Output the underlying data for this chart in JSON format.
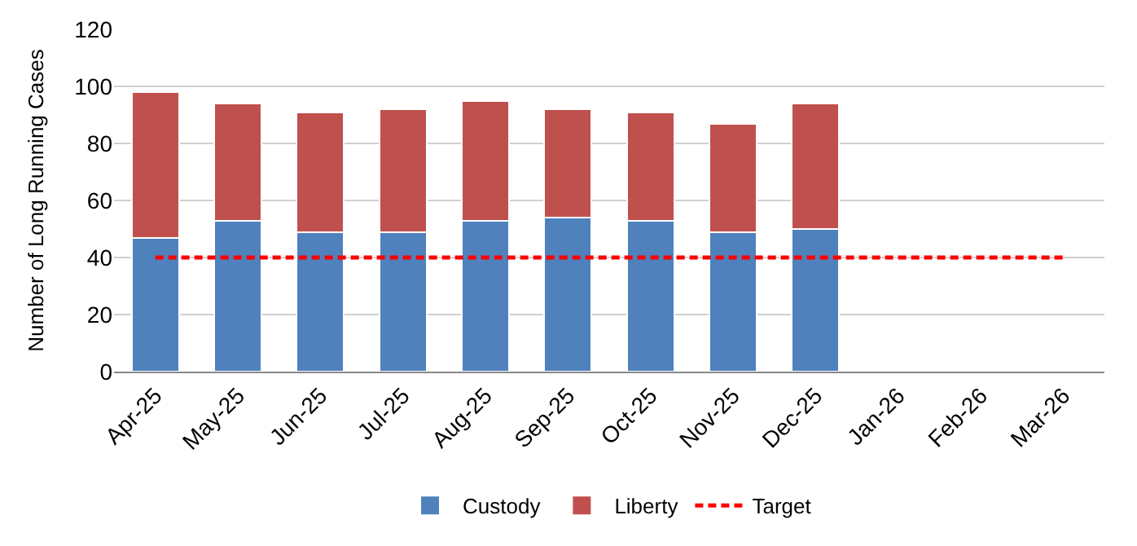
{
  "chart_data": {
    "type": "bar",
    "stacked": true,
    "ylabel": "Number of Long Running Cases",
    "categories": [
      "Apr-25",
      "May-25",
      "Jun-25",
      "Jul-25",
      "Aug-25",
      "Sep-25",
      "Oct-25",
      "Nov-25",
      "Dec-25",
      "Jan-26",
      "Feb-26",
      "Mar-26"
    ],
    "series": [
      {
        "name": "Custody",
        "color": "#4f81bd",
        "values": [
          47,
          53,
          49,
          49,
          53,
          54,
          53,
          49,
          50,
          null,
          null,
          null
        ]
      },
      {
        "name": "Liberty",
        "color": "#c0504d",
        "values": [
          51,
          41,
          42,
          43,
          42,
          38,
          38,
          38,
          44,
          null,
          null,
          null
        ]
      },
      {
        "name": "Target",
        "type": "line",
        "color": "#ff0000",
        "line_style": "dashed",
        "values": [
          40,
          40,
          40,
          40,
          40,
          40,
          40,
          40,
          40,
          40,
          40,
          40
        ]
      }
    ],
    "ylim": [
      0,
      120
    ],
    "yticks": [
      0,
      20,
      40,
      60,
      80,
      100,
      120
    ],
    "grid": "y",
    "legend": "bottom"
  }
}
